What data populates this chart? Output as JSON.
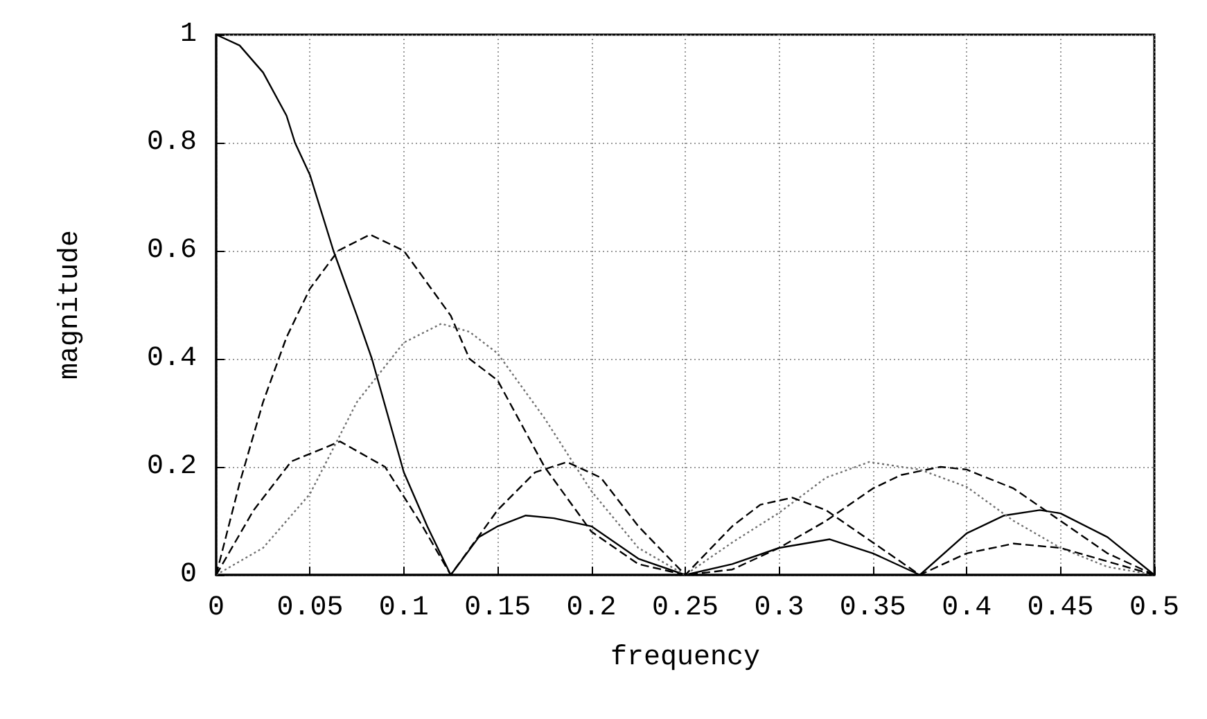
{
  "chart_data": {
    "type": "line",
    "xlabel": "frequency",
    "ylabel": "magnitude",
    "xlim": [
      0,
      0.5
    ],
    "xticks": [
      0,
      0.05,
      0.1,
      0.15,
      0.2,
      0.25,
      0.3,
      0.35,
      0.4,
      0.45,
      0.5
    ],
    "ylim": [
      0,
      1
    ],
    "yticks": [
      0,
      0.2,
      0.4,
      0.6,
      0.8,
      1
    ],
    "grid": true,
    "marker": "none",
    "series": [
      {
        "color": "#000000",
        "line_style": "solid",
        "x": [
          0,
          0.0125,
          0.025,
          0.0375,
          0.042,
          0.05,
          0.0625,
          0.075,
          0.083,
          0.1,
          0.1125,
          0.125,
          0.14,
          0.15,
          0.165,
          0.18,
          0.2,
          0.225,
          0.25,
          0.275,
          0.3,
          0.327,
          0.35,
          0.375,
          0.4,
          0.42,
          0.439,
          0.45,
          0.475,
          0.5
        ],
        "values": [
          1,
          0.98,
          0.93,
          0.85,
          0.8,
          0.74,
          0.6,
          0.48,
          0.4,
          0.19,
          0.09,
          0,
          0.07,
          0.09,
          0.11,
          0.105,
          0.09,
          0.03,
          0,
          0.02,
          0.05,
          0.066,
          0.04,
          0,
          0.077,
          0.11,
          0.12,
          0.114,
          0.07,
          0
        ]
      },
      {
        "color": "#000000",
        "line_style": "dashed",
        "x": [
          0,
          0.0125,
          0.025,
          0.0375,
          0.05,
          0.065,
          0.082,
          0.1,
          0.125,
          0.135,
          0.15,
          0.175,
          0.2,
          0.225,
          0.25,
          0.275,
          0.3,
          0.325,
          0.35,
          0.365,
          0.386,
          0.4,
          0.425,
          0.45,
          0.475,
          0.5
        ],
        "values": [
          0,
          0.17,
          0.32,
          0.44,
          0.53,
          0.6,
          0.63,
          0.6,
          0.48,
          0.4,
          0.36,
          0.2,
          0.08,
          0.02,
          0,
          0.01,
          0.05,
          0.1,
          0.16,
          0.185,
          0.2,
          0.195,
          0.16,
          0.1,
          0.04,
          0
        ]
      },
      {
        "color": "#707070",
        "line_style": "dotted",
        "x": [
          0,
          0.025,
          0.05,
          0.075,
          0.1,
          0.12,
          0.135,
          0.15,
          0.175,
          0.2,
          0.225,
          0.25,
          0.275,
          0.3,
          0.325,
          0.348,
          0.375,
          0.4,
          0.425,
          0.45,
          0.475,
          0.5
        ],
        "values": [
          0,
          0.05,
          0.15,
          0.32,
          0.43,
          0.465,
          0.45,
          0.41,
          0.29,
          0.155,
          0.05,
          0,
          0.06,
          0.115,
          0.18,
          0.209,
          0.195,
          0.163,
          0.1,
          0.05,
          0.015,
          0
        ]
      },
      {
        "color": "#000000",
        "line_style": "dashed",
        "x": [
          0,
          0.02,
          0.04,
          0.066,
          0.09,
          0.11,
          0.125,
          0.15,
          0.17,
          0.187,
          0.205,
          0.225,
          0.25,
          0.275,
          0.29,
          0.307,
          0.325,
          0.35,
          0.375,
          0.4,
          0.425,
          0.45,
          0.475,
          0.5
        ],
        "values": [
          0,
          0.12,
          0.21,
          0.247,
          0.2,
          0.09,
          0,
          0.12,
          0.19,
          0.209,
          0.18,
          0.09,
          0,
          0.09,
          0.13,
          0.143,
          0.12,
          0.06,
          0,
          0.04,
          0.058,
          0.05,
          0.025,
          0
        ]
      }
    ]
  }
}
